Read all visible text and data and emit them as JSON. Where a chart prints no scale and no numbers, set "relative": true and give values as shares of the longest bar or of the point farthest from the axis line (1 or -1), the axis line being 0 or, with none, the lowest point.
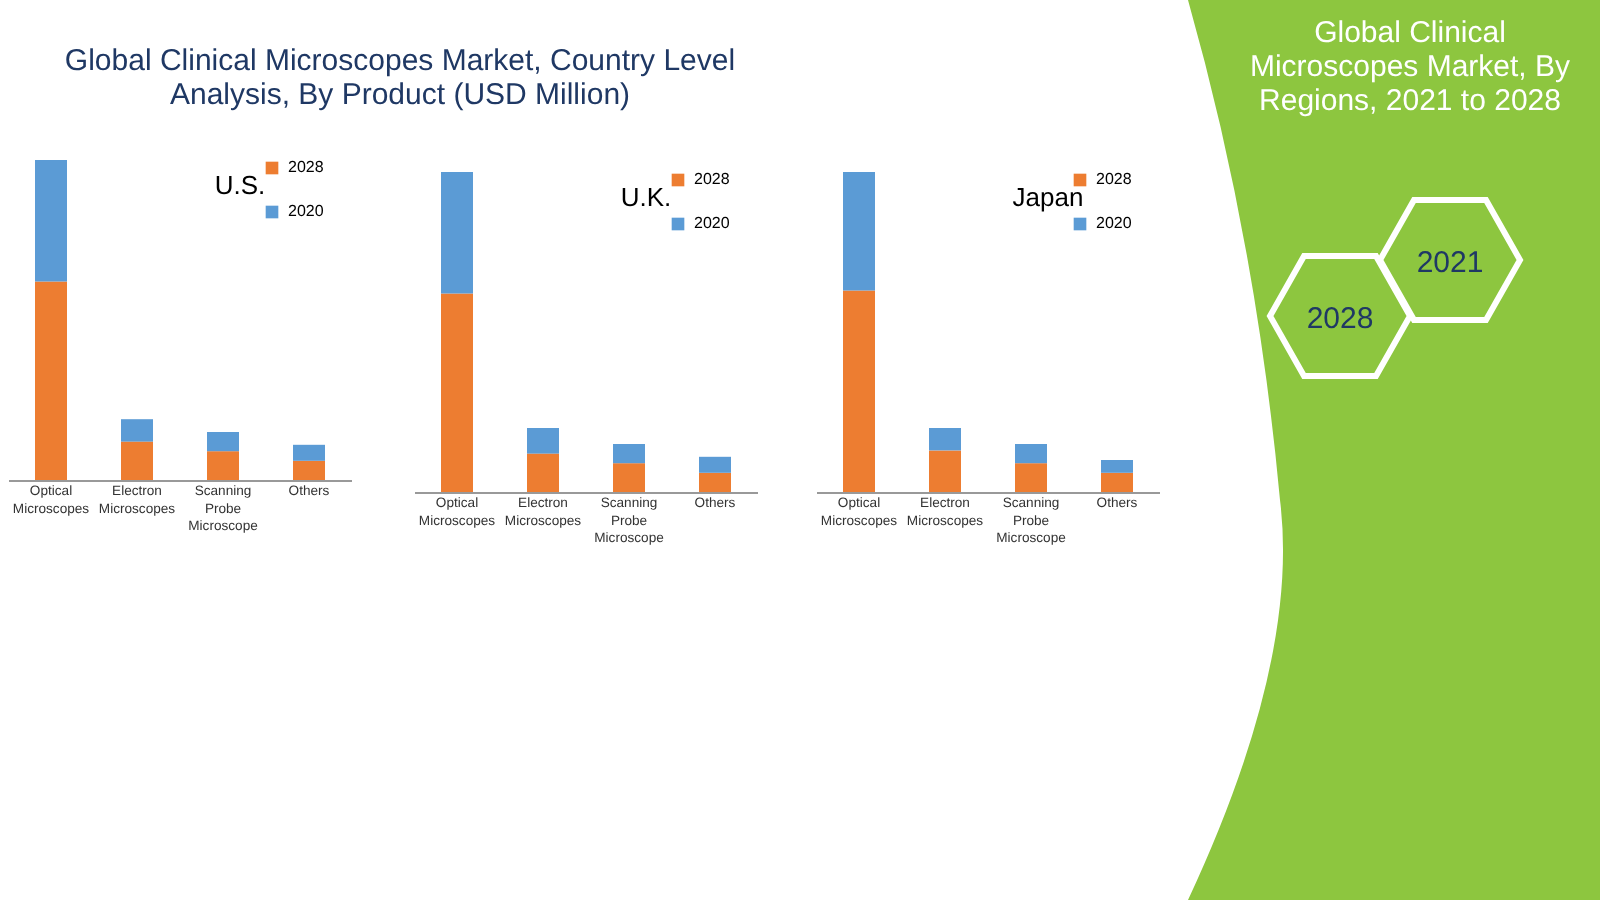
{
  "chart_data": [
    {
      "type": "other",
      "title": "Global Clinical Microscopes Market, Country Level Analysis, By Product (USD Million)"
    },
    {
      "type": "bar",
      "title": "U.S.",
      "categories": [
        "Optical Microscopes",
        "Electron Microscopes",
        "Scanning Probe Microscope",
        "Others"
      ],
      "stacked": true,
      "relative": true,
      "legend": "right",
      "series": [
        {
          "name": "2028",
          "color": "#ed7d31",
          "values": [
            0.62,
            0.12,
            0.09,
            0.06
          ]
        },
        {
          "name": "2020",
          "color": "#5b9bd5",
          "values": [
            0.38,
            0.07,
            0.06,
            0.05
          ]
        }
      ]
    },
    {
      "type": "bar",
      "title": "U.K.",
      "categories": [
        "Optical Microscopes",
        "Electron Microscopes",
        "Scanning Probe Microscope",
        "Others"
      ],
      "stacked": true,
      "relative": true,
      "legend": "right",
      "series": [
        {
          "name": "2028",
          "color": "#ed7d31",
          "values": [
            0.62,
            0.12,
            0.09,
            0.06
          ]
        },
        {
          "name": "2020",
          "color": "#5b9bd5",
          "values": [
            0.38,
            0.08,
            0.06,
            0.05
          ]
        }
      ]
    },
    {
      "type": "bar",
      "title": "Japan",
      "categories": [
        "Optical Microscopes",
        "Electron Microscopes",
        "Scanning Probe Microscope",
        "Others"
      ],
      "stacked": true,
      "relative": true,
      "legend": "right",
      "series": [
        {
          "name": "2028",
          "color": "#ed7d31",
          "values": [
            0.63,
            0.13,
            0.09,
            0.06
          ]
        },
        {
          "name": "2020",
          "color": "#5b9bd5",
          "values": [
            0.37,
            0.07,
            0.06,
            0.04
          ]
        }
      ]
    },
    {
      "type": "other",
      "title": "Global Clinical Microscopes Market, By Regions, 2021 to 2028",
      "annotations": [
        "2028",
        "2021"
      ]
    }
  ]
}
